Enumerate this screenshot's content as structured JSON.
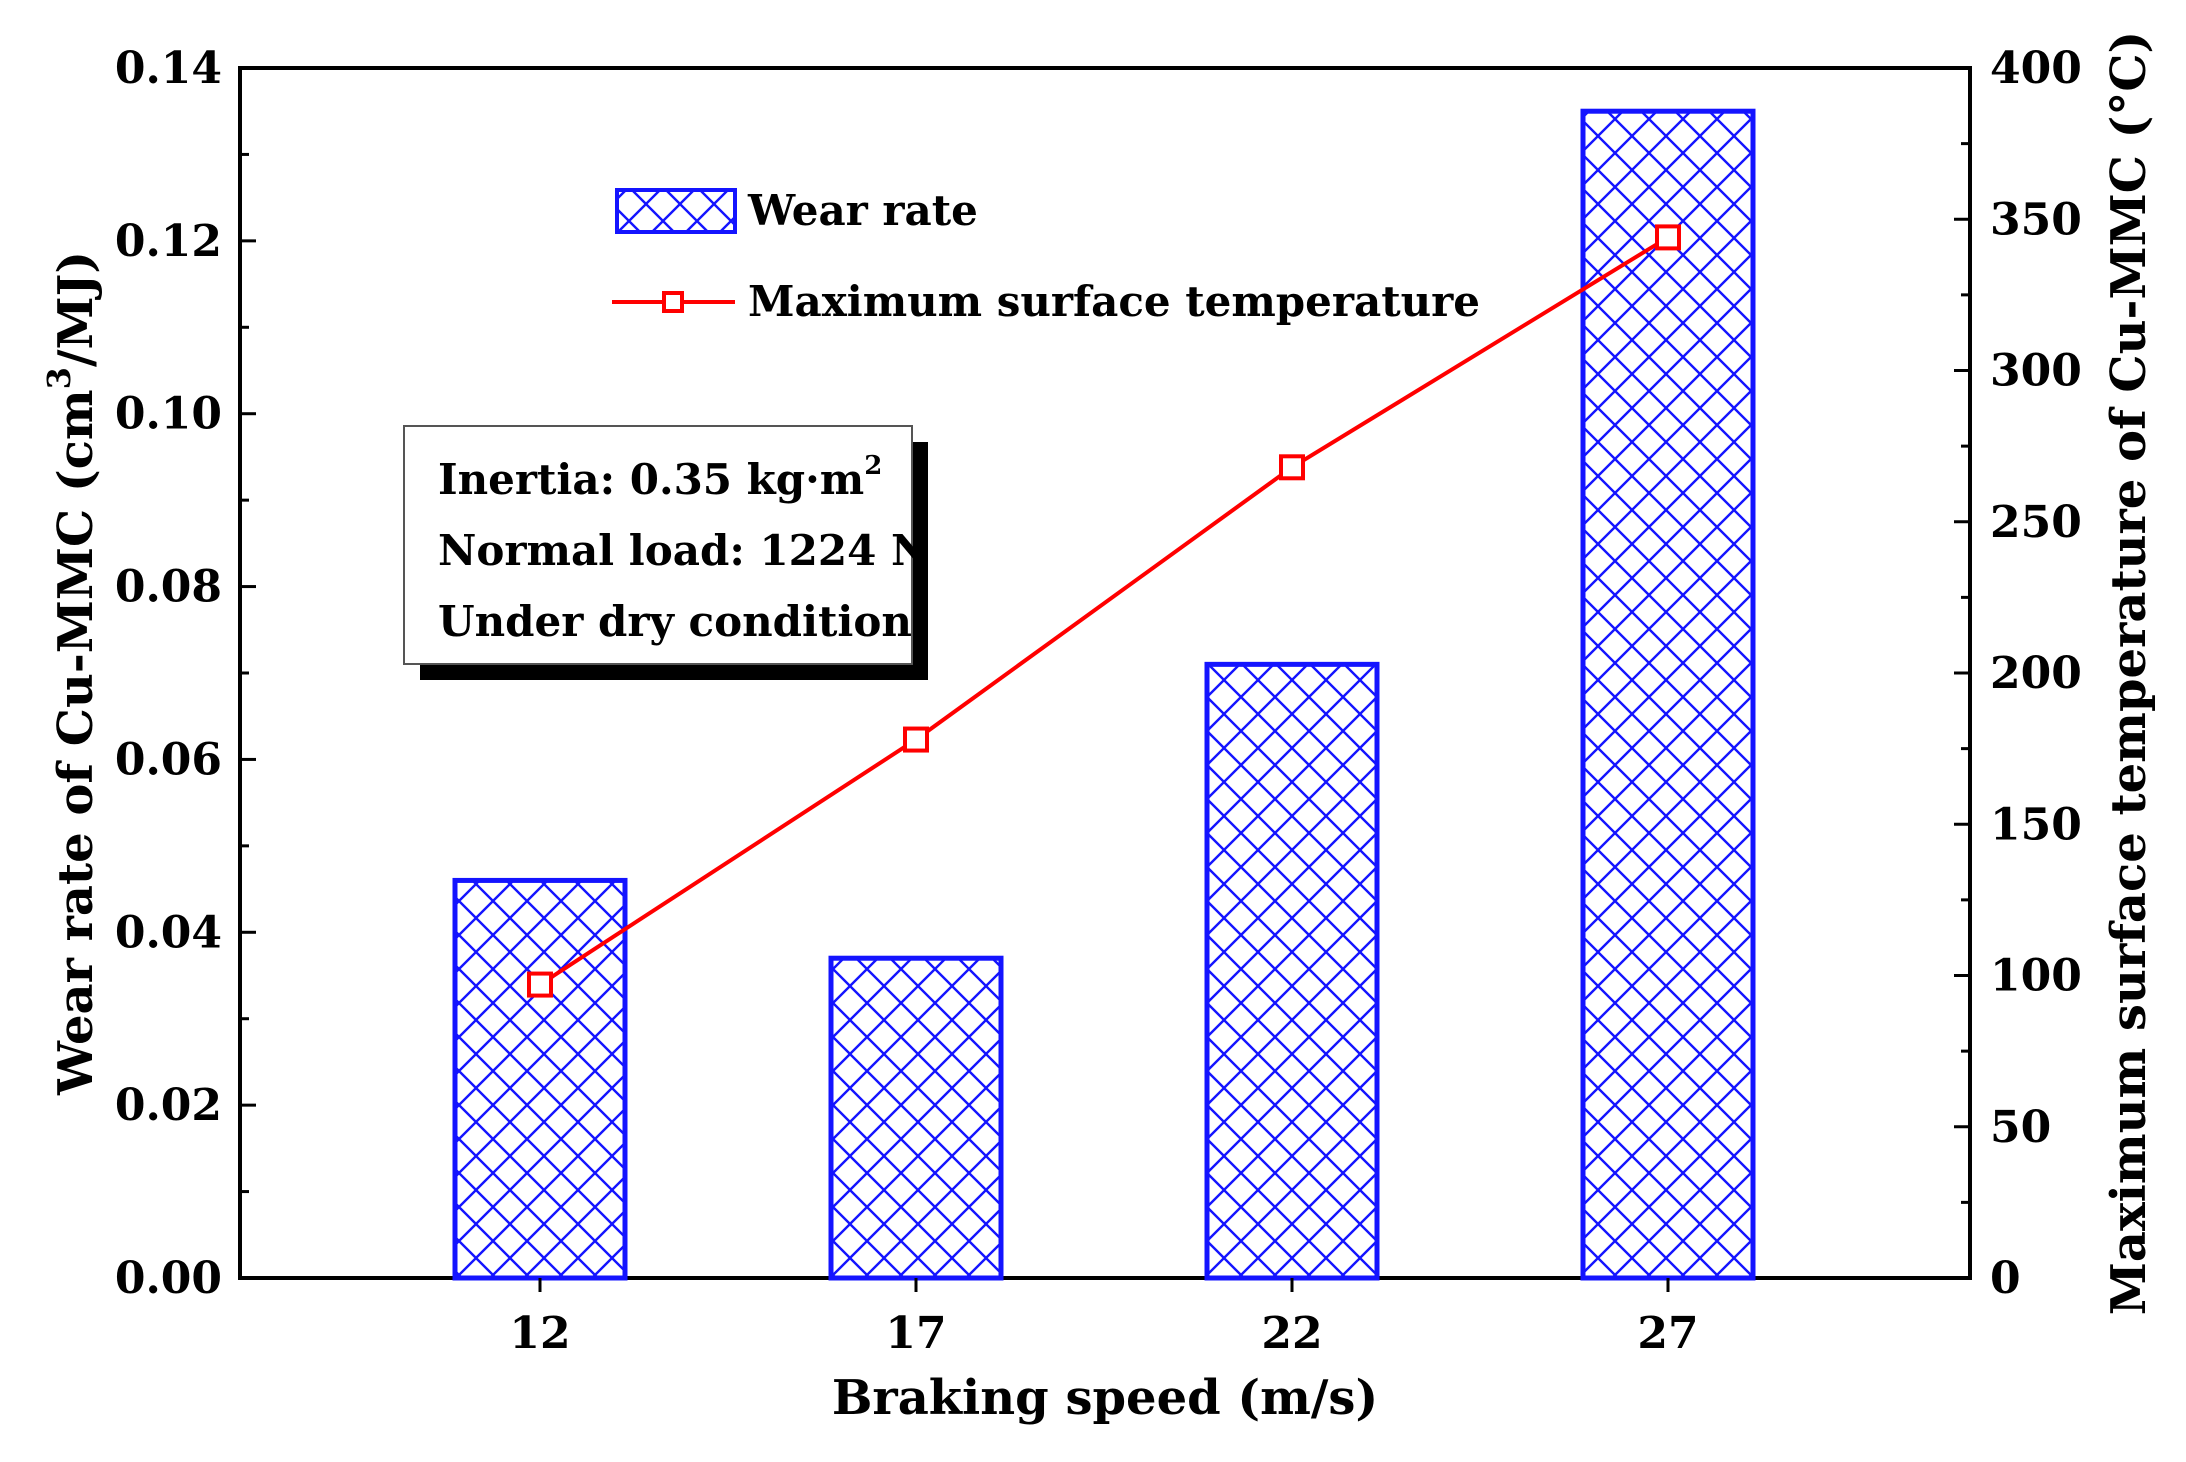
{
  "chart_data": {
    "type": "bar+line",
    "categories": [
      "12",
      "17",
      "22",
      "27"
    ],
    "xlabel": "Braking speed (m/s)",
    "ylabel_left": {
      "main": "Wear rate of Cu-MMC (cm",
      "sup": "3",
      "tail": "/MJ)"
    },
    "ylabel_right": "Maximum surface temperature of Cu-MMC (°C)",
    "ylim_left": [
      0,
      0.14
    ],
    "ylim_right": [
      0,
      400
    ],
    "yticks_left": [
      "0.00",
      "0.02",
      "0.04",
      "0.06",
      "0.08",
      "0.10",
      "0.12",
      "0.14"
    ],
    "yticks_right": [
      "0",
      "50",
      "100",
      "150",
      "200",
      "250",
      "300",
      "350",
      "400"
    ],
    "series": [
      {
        "name": "Wear rate",
        "kind": "bar",
        "axis": "left",
        "values": [
          0.046,
          0.037,
          0.071,
          0.135
        ]
      },
      {
        "name": "Maximum surface temperature",
        "kind": "line",
        "axis": "right",
        "values": [
          97,
          178,
          268,
          344
        ]
      }
    ],
    "legend_position": "top-center",
    "annotation": {
      "lines": [
        {
          "text": "Inertia: 0.35 kg·m",
          "sup": "2"
        },
        {
          "text": "Normal load: 1224 N",
          "sup": ""
        },
        {
          "text": "Under dry condition",
          "sup": ""
        }
      ]
    },
    "colors": {
      "bar": "#1414ff",
      "line": "#ff0000"
    }
  }
}
